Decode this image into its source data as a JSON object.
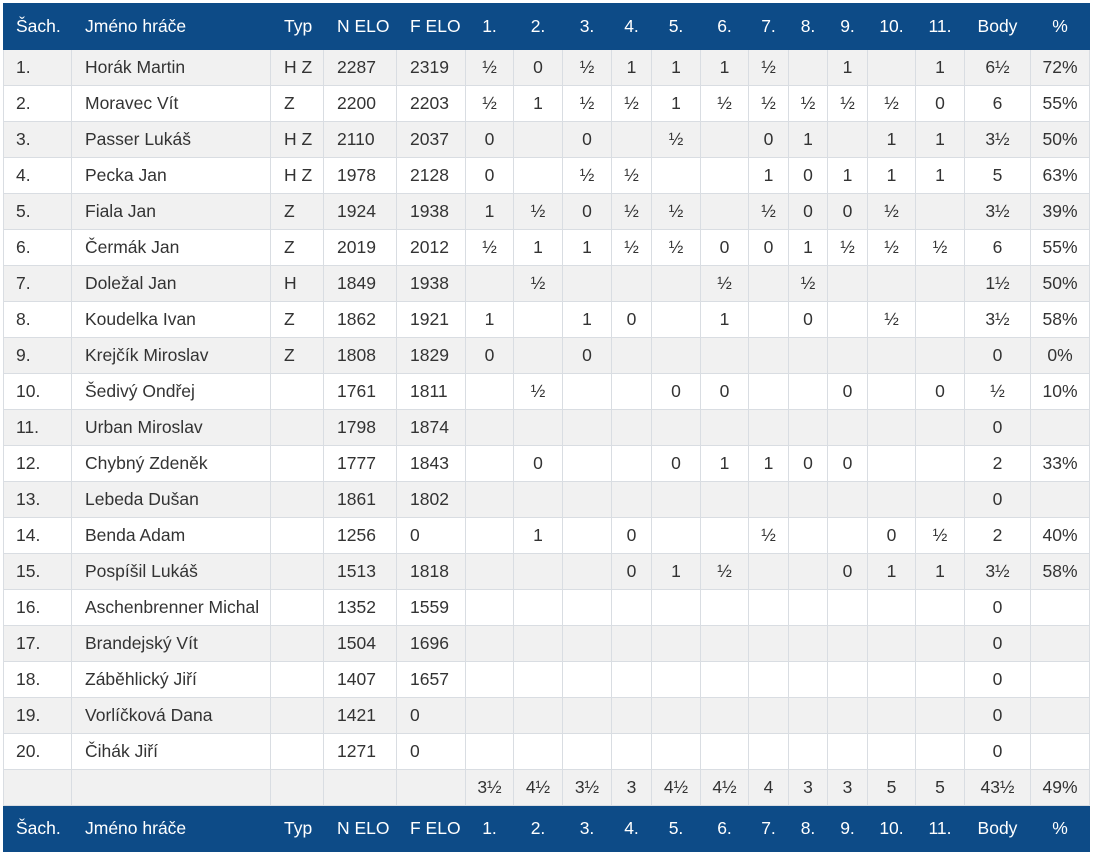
{
  "header": [
    "Šach.",
    "Jméno hráče",
    "Typ",
    "N ELO",
    "F ELO",
    "1.",
    "2.",
    "3.",
    "4.",
    "5.",
    "6.",
    "7.",
    "8.",
    "9.",
    "10.",
    "11.",
    "Body",
    "%"
  ],
  "rows": [
    [
      "1.",
      "Horák Martin",
      "H Z",
      "2287",
      "2319",
      "½",
      "0",
      "½",
      "1",
      "1",
      "1",
      "½",
      "",
      "1",
      "",
      "1",
      "6½",
      "72%"
    ],
    [
      "2.",
      "Moravec Vít",
      "Z",
      "2200",
      "2203",
      "½",
      "1",
      "½",
      "½",
      "1",
      "½",
      "½",
      "½",
      "½",
      "½",
      "0",
      "6",
      "55%"
    ],
    [
      "3.",
      "Passer Lukáš",
      "H Z",
      "2110",
      "2037",
      "0",
      "",
      "0",
      "",
      "½",
      "",
      "0",
      "1",
      "",
      "1",
      "1",
      "3½",
      "50%"
    ],
    [
      "4.",
      "Pecka Jan",
      "H Z",
      "1978",
      "2128",
      "0",
      "",
      "½",
      "½",
      "",
      "",
      "1",
      "0",
      "1",
      "1",
      "1",
      "5",
      "63%"
    ],
    [
      "5.",
      "Fiala Jan",
      "Z",
      "1924",
      "1938",
      "1",
      "½",
      "0",
      "½",
      "½",
      "",
      "½",
      "0",
      "0",
      "½",
      "",
      "3½",
      "39%"
    ],
    [
      "6.",
      "Čermák Jan",
      "Z",
      "2019",
      "2012",
      "½",
      "1",
      "1",
      "½",
      "½",
      "0",
      "0",
      "1",
      "½",
      "½",
      "½",
      "6",
      "55%"
    ],
    [
      "7.",
      "Doležal Jan",
      "H",
      "1849",
      "1938",
      "",
      "½",
      "",
      "",
      "",
      "½",
      "",
      "½",
      "",
      "",
      "",
      "1½",
      "50%"
    ],
    [
      "8.",
      "Koudelka Ivan",
      "Z",
      "1862",
      "1921",
      "1",
      "",
      "1",
      "0",
      "",
      "1",
      "",
      "0",
      "",
      "½",
      "",
      "3½",
      "58%"
    ],
    [
      "9.",
      "Krejčík Miroslav",
      "Z",
      "1808",
      "1829",
      "0",
      "",
      "0",
      "",
      "",
      "",
      "",
      "",
      "",
      "",
      "",
      "0",
      "0%"
    ],
    [
      "10.",
      "Šedivý Ondřej",
      "",
      "1761",
      "1811",
      "",
      "½",
      "",
      "",
      "0",
      "0",
      "",
      "",
      "0",
      "",
      "0",
      "½",
      "10%"
    ],
    [
      "11.",
      "Urban Miroslav",
      "",
      "1798",
      "1874",
      "",
      "",
      "",
      "",
      "",
      "",
      "",
      "",
      "",
      "",
      "",
      "0",
      ""
    ],
    [
      "12.",
      "Chybný Zdeněk",
      "",
      "1777",
      "1843",
      "",
      "0",
      "",
      "",
      "0",
      "1",
      "1",
      "0",
      "0",
      "",
      "",
      "2",
      "33%"
    ],
    [
      "13.",
      "Lebeda Dušan",
      "",
      "1861",
      "1802",
      "",
      "",
      "",
      "",
      "",
      "",
      "",
      "",
      "",
      "",
      "",
      "0",
      ""
    ],
    [
      "14.",
      "Benda Adam",
      "",
      "1256",
      "0",
      "",
      "1",
      "",
      "0",
      "",
      "",
      "½",
      "",
      "",
      "0",
      "½",
      "2",
      "40%"
    ],
    [
      "15.",
      "Pospíšil Lukáš",
      "",
      "1513",
      "1818",
      "",
      "",
      "",
      "0",
      "1",
      "½",
      "",
      "",
      "0",
      "1",
      "1",
      "3½",
      "58%"
    ],
    [
      "16.",
      "Aschenbrenner Michal",
      "",
      "1352",
      "1559",
      "",
      "",
      "",
      "",
      "",
      "",
      "",
      "",
      "",
      "",
      "",
      "0",
      ""
    ],
    [
      "17.",
      "Brandejský Vít",
      "",
      "1504",
      "1696",
      "",
      "",
      "",
      "",
      "",
      "",
      "",
      "",
      "",
      "",
      "",
      "0",
      ""
    ],
    [
      "18.",
      "Záběhlický Jiří",
      "",
      "1407",
      "1657",
      "",
      "",
      "",
      "",
      "",
      "",
      "",
      "",
      "",
      "",
      "",
      "0",
      ""
    ],
    [
      "19.",
      "Vorlíčková Dana",
      "",
      "1421",
      "0",
      "",
      "",
      "",
      "",
      "",
      "",
      "",
      "",
      "",
      "",
      "",
      "0",
      ""
    ],
    [
      "20.",
      "Čihák Jiří",
      "",
      "1271",
      "0",
      "",
      "",
      "",
      "",
      "",
      "",
      "",
      "",
      "",
      "",
      "",
      "0",
      ""
    ]
  ],
  "totals": [
    "",
    "",
    "",
    "",
    "",
    "3½",
    "4½",
    "3½",
    "3",
    "4½",
    "4½",
    "4",
    "3",
    "3",
    "5",
    "5",
    "43½",
    "49%"
  ],
  "colors": {
    "header_bg": "#0d4b87",
    "header_text": "#ffffff",
    "stripe": "#f1f1f1",
    "border": "#d9dde2"
  }
}
